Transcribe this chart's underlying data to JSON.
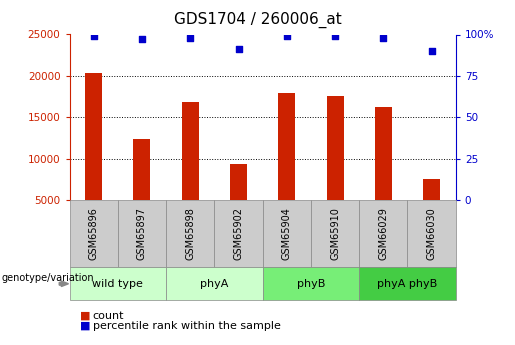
{
  "title": "GDS1704 / 260006_at",
  "samples": [
    "GSM65896",
    "GSM65897",
    "GSM65898",
    "GSM65902",
    "GSM65904",
    "GSM65910",
    "GSM66029",
    "GSM66030"
  ],
  "counts": [
    20300,
    12400,
    16800,
    9300,
    17900,
    17600,
    16300,
    7500
  ],
  "percentile_ranks": [
    99,
    97,
    98,
    91,
    99,
    99,
    98,
    90
  ],
  "bar_color": "#cc2200",
  "dot_color": "#0000cc",
  "left_ylim": [
    5000,
    25000
  ],
  "left_yticks": [
    5000,
    10000,
    15000,
    20000,
    25000
  ],
  "right_ylim": [
    0,
    100
  ],
  "right_yticks": [
    0,
    25,
    50,
    75,
    100
  ],
  "right_yticklabels": [
    "0",
    "25",
    "50",
    "75",
    "100%"
  ],
  "left_axis_color": "#cc2200",
  "right_axis_color": "#0000cc",
  "title_fontsize": 11,
  "tick_fontsize": 7.5,
  "sample_fontsize": 7,
  "group_label_fontsize": 8,
  "legend_fontsize": 8,
  "group_boundaries": [
    [
      0,
      2,
      "wild type",
      "#ccffcc"
    ],
    [
      2,
      4,
      "phyA",
      "#ccffcc"
    ],
    [
      4,
      6,
      "phyB",
      "#77ee77"
    ],
    [
      6,
      8,
      "phyA phyB",
      "#44cc44"
    ]
  ],
  "sample_box_color": "#cccccc",
  "grid_color": "#000000",
  "bar_width": 0.35
}
